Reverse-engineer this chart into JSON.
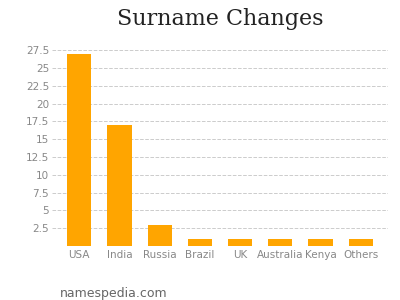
{
  "title": "Surname Changes",
  "categories": [
    "USA",
    "India",
    "Russia",
    "Brazil",
    "UK",
    "Australia",
    "Kenya",
    "Others"
  ],
  "values": [
    27,
    17,
    3,
    1,
    1,
    1,
    1,
    1
  ],
  "bar_color": "#FFA500",
  "ytick_vals": [
    0,
    2.5,
    5,
    7.5,
    10,
    12.5,
    15,
    17.5,
    20,
    22.5,
    25,
    27.5
  ],
  "ytick_labels": [
    "",
    "2.5",
    "5",
    "7.5",
    "10",
    "12.5",
    "15",
    "17.5",
    "20",
    "22.5",
    "25",
    "27.5"
  ],
  "ylim": [
    0,
    29.5
  ],
  "background_color": "#ffffff",
  "grid_color": "#cccccc",
  "title_fontsize": 16,
  "tick_fontsize": 7.5,
  "watermark": "namespedia.com",
  "watermark_fontsize": 9
}
